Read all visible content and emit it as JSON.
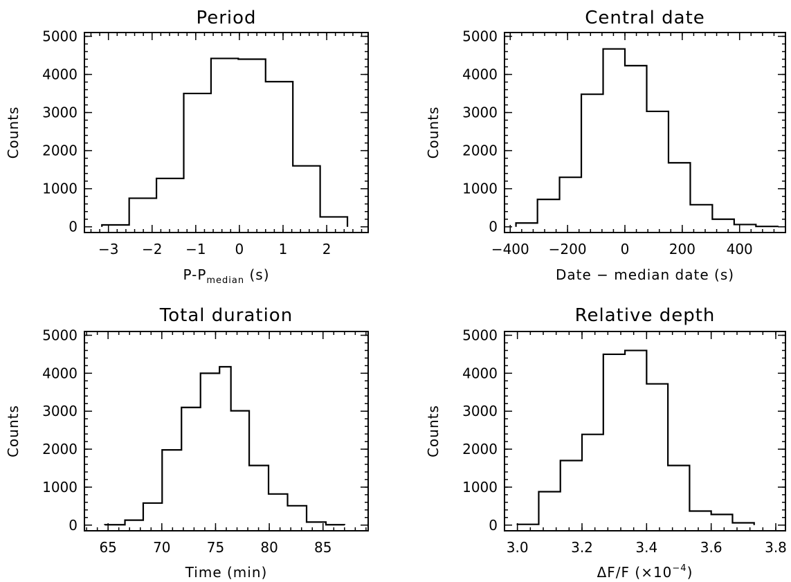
{
  "chart_data": [
    {
      "type": "histogram",
      "title": "Period",
      "xlabel": "P-P",
      "xlabel_sub": "median",
      "xlabel_suffix": " (s)",
      "ylabel": "Counts",
      "xlim": [
        -3.55,
        2.95
      ],
      "ylim": [
        -150,
        5100
      ],
      "xticks": [
        -3,
        -2,
        -1,
        0,
        1,
        2
      ],
      "xtick_labels": [
        "−3",
        "−2",
        "−1",
        "0",
        "1",
        "2"
      ],
      "yticks": [
        0,
        1000,
        2000,
        3000,
        4000,
        5000
      ],
      "ytick_labels": [
        "0",
        "1000",
        "2000",
        "3000",
        "4000",
        "5000"
      ],
      "bin_edges": [
        -3.15,
        -2.525,
        -1.9,
        -1.275,
        -0.65,
        -0.025,
        0.6,
        1.225,
        1.85,
        2.475
      ],
      "counts": [
        50,
        750,
        1270,
        3500,
        4420,
        4400,
        3810,
        1600,
        260
      ]
    },
    {
      "type": "histogram",
      "title": "Central date",
      "xlabel": "Date − median date (s)",
      "ylabel": "Counts",
      "xlim": [
        -420,
        560
      ],
      "ylim": [
        -150,
        5100
      ],
      "xticks": [
        -400,
        -200,
        0,
        200,
        400
      ],
      "xtick_labels": [
        "−400",
        "−200",
        "0",
        "200",
        "400"
      ],
      "yticks": [
        0,
        1000,
        2000,
        3000,
        4000,
        5000
      ],
      "ytick_labels": [
        "0",
        "1000",
        "2000",
        "3000",
        "4000",
        "5000"
      ],
      "bin_edges": [
        -380,
        -305,
        -228,
        -152,
        -76,
        0,
        76,
        152,
        228,
        305,
        381,
        457,
        533
      ],
      "counts": [
        100,
        720,
        1300,
        3480,
        4670,
        4230,
        3030,
        1680,
        580,
        200,
        60,
        10
      ]
    },
    {
      "type": "histogram",
      "title": "Total duration",
      "xlabel": "Time (min)",
      "ylabel": "Counts",
      "xlim": [
        62.8,
        89.2
      ],
      "ylim": [
        -150,
        5100
      ],
      "xticks": [
        65,
        70,
        75,
        80,
        85
      ],
      "xtick_labels": [
        "65",
        "70",
        "75",
        "80",
        "85"
      ],
      "yticks": [
        0,
        1000,
        2000,
        3000,
        4000,
        5000
      ],
      "ytick_labels": [
        "0",
        "1000",
        "2000",
        "3000",
        "4000",
        "5000"
      ],
      "bin_edges": [
        64.7,
        66.57,
        68.27,
        70.03,
        71.83,
        73.6,
        75.37,
        76.43,
        78.13,
        79.93,
        81.7,
        83.47,
        85.27,
        87.0
      ],
      "counts": [
        10,
        130,
        580,
        1980,
        3100,
        4000,
        4170,
        3010,
        1570,
        820,
        510,
        80,
        10
      ]
    },
    {
      "type": "histogram",
      "title": "Relative depth",
      "xlabel": "ΔF/F (×10",
      "xlabel_sup": "−4",
      "xlabel_suffix": ")",
      "ylabel": "Counts",
      "xlim": [
        2.96,
        3.83
      ],
      "ylim": [
        -150,
        5100
      ],
      "xticks": [
        3.0,
        3.2,
        3.4,
        3.6,
        3.8
      ],
      "xtick_labels": [
        "3.0",
        "3.2",
        "3.4",
        "3.6",
        "3.8"
      ],
      "yticks": [
        0,
        1000,
        2000,
        3000,
        4000,
        5000
      ],
      "ytick_labels": [
        "0",
        "1000",
        "2000",
        "3000",
        "4000",
        "5000"
      ],
      "bin_edges": [
        3.0,
        3.066,
        3.133,
        3.2,
        3.266,
        3.333,
        3.4,
        3.466,
        3.533,
        3.6,
        3.666,
        3.733
      ],
      "counts": [
        20,
        880,
        1700,
        2390,
        4500,
        4600,
        3720,
        1570,
        370,
        280,
        60
      ]
    }
  ]
}
